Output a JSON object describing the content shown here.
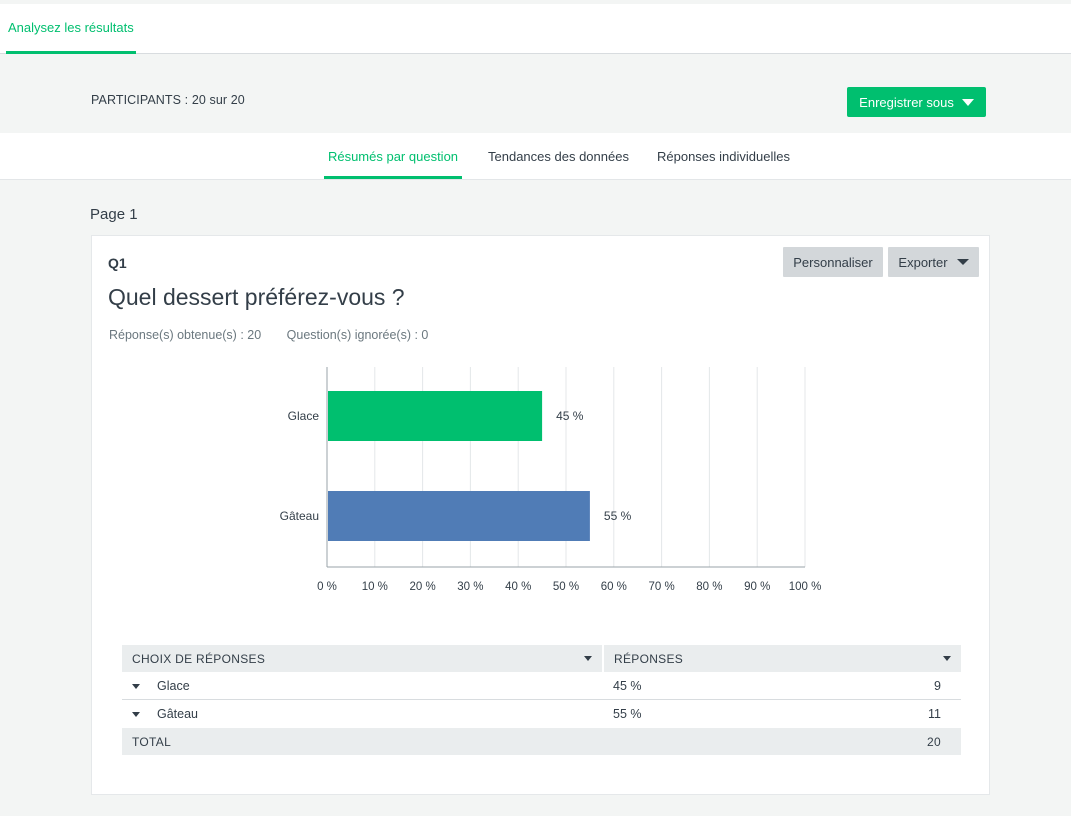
{
  "header": {
    "tab_label": "Analysez les résultats"
  },
  "summary_bar": {
    "participants": "PARTICIPANTS : 20 sur 20",
    "save_label": "Enregistrer sous"
  },
  "subnav": {
    "tabs": [
      {
        "label": "Résumés par question",
        "active": true
      },
      {
        "label": "Tendances des données",
        "active": false
      },
      {
        "label": "Réponses individuelles",
        "active": false
      }
    ]
  },
  "page_label": "Page 1",
  "question": {
    "number": "Q1",
    "title": "Quel dessert préférez-vous ?",
    "answered": "Réponse(s) obtenue(s) : 20",
    "skipped": "Question(s) ignorée(s) : 0",
    "customize_label": "Personnaliser",
    "export_label": "Exporter"
  },
  "chart_data": {
    "type": "bar",
    "orientation": "horizontal",
    "categories": [
      "Glace",
      "Gâteau"
    ],
    "values": [
      45,
      55
    ],
    "data_labels": [
      "45 %",
      "55 %"
    ],
    "colors": [
      "#00bf6f",
      "#507cb6"
    ],
    "xlim": [
      0,
      100
    ],
    "x_ticks": [
      "0 %",
      "10 %",
      "20 %",
      "30 %",
      "40 %",
      "50 %",
      "60 %",
      "70 %",
      "80 %",
      "90 %",
      "100 %"
    ],
    "grid": true
  },
  "table": {
    "headers": {
      "choices": "CHOIX DE RÉPONSES",
      "responses": "RÉPONSES"
    },
    "rows": [
      {
        "label": "Glace",
        "percent": "45 %",
        "count": "9"
      },
      {
        "label": "Gâteau",
        "percent": "55 %",
        "count": "11"
      }
    ],
    "total": {
      "label": "TOTAL",
      "count": "20"
    }
  },
  "colors": {
    "accent": "#00bf6f",
    "secondary": "#507cb6",
    "text": "#333e48"
  }
}
